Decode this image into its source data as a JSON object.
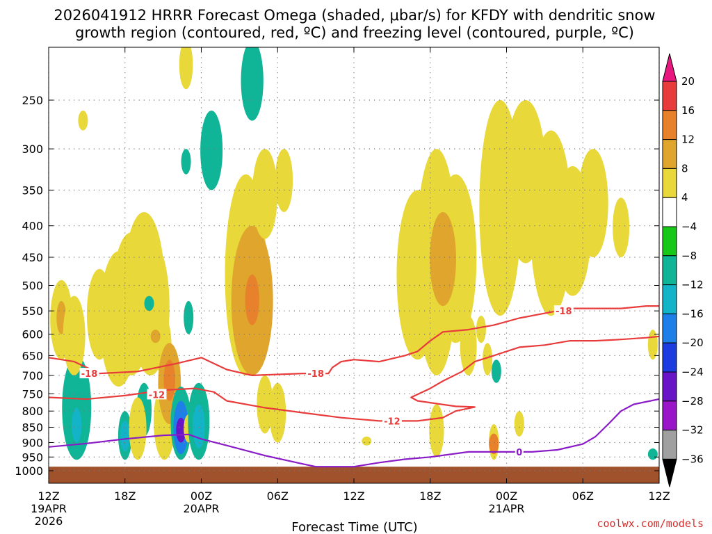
{
  "chart_data": {
    "type": "heatmap",
    "title_lines": [
      "2026041912 HRRR Forecast Omega (shaded, μbar/s) for KFDY with dendritic snow",
      "growth region (contoured, red, ºC) and freezing level (contoured, purple, ºC)"
    ],
    "xlabel": "Forecast Time (UTC)",
    "x_range_hours": [
      0,
      48
    ],
    "x_ticks": [
      {
        "hour": 0,
        "label": "12Z",
        "date": "19APR",
        "year": "2026"
      },
      {
        "hour": 6,
        "label": "18Z"
      },
      {
        "hour": 12,
        "label": "00Z",
        "date": "20APR"
      },
      {
        "hour": 18,
        "label": "06Z"
      },
      {
        "hour": 24,
        "label": "12Z"
      },
      {
        "hour": 30,
        "label": "18Z"
      },
      {
        "hour": 36,
        "label": "00Z",
        "date": "21APR"
      },
      {
        "hour": 42,
        "label": "06Z"
      },
      {
        "hour": 48,
        "label": "12Z"
      }
    ],
    "y_ticks_hpa": [
      250,
      300,
      350,
      400,
      450,
      500,
      550,
      600,
      650,
      700,
      750,
      800,
      850,
      900,
      950,
      1000
    ],
    "y_range_hpa": [
      200,
      1015
    ],
    "colorbar": {
      "levels": [
        "20",
        "16",
        "12",
        "8",
        "4",
        "−4",
        "−8",
        "−12",
        "−16",
        "−20",
        "−24",
        "−28",
        "−32",
        "−36"
      ],
      "colors": [
        "#e8177f",
        "#e83b3b",
        "#e8812b",
        "#e0a52c",
        "#e8d83a",
        "#ffffff",
        "#18c818",
        "#10b496",
        "#14b4c8",
        "#1f7fe8",
        "#1c3ce0",
        "#6a14c8",
        "#9a14c8",
        "#a0a0a0",
        "#000000"
      ]
    },
    "ground_color": "#a0522d",
    "ground_top_hpa": 985,
    "omega_blobs": [
      {
        "hour": 1.0,
        "p_top": 490,
        "p_bot": 660,
        "value": 4
      },
      {
        "hour": 1.0,
        "p_top": 530,
        "p_bot": 600,
        "value": 8
      },
      {
        "hour": 2.2,
        "p_top": 650,
        "p_bot": 960,
        "value": -8
      },
      {
        "hour": 2.2,
        "p_top": 790,
        "p_bot": 900,
        "value": -12
      },
      {
        "hour": 2.0,
        "p_top": 520,
        "p_bot": 700,
        "value": 4
      },
      {
        "hour": 4.0,
        "p_top": 470,
        "p_bot": 660,
        "value": 4
      },
      {
        "hour": 5.5,
        "p_top": 440,
        "p_bot": 730,
        "value": 4
      },
      {
        "hour": 6.5,
        "p_top": 410,
        "p_bot": 700,
        "value": 4
      },
      {
        "hour": 7.5,
        "p_top": 380,
        "p_bot": 680,
        "value": 4
      },
      {
        "hour": 8.0,
        "p_top": 420,
        "p_bot": 700,
        "value": 4
      },
      {
        "hour": 9.0,
        "p_top": 560,
        "p_bot": 700,
        "value": 4
      },
      {
        "hour": 6.0,
        "p_top": 800,
        "p_bot": 960,
        "value": -8
      },
      {
        "hour": 6.0,
        "p_top": 830,
        "p_bot": 930,
        "value": -12
      },
      {
        "hour": 7.5,
        "p_top": 720,
        "p_bot": 880,
        "value": -8
      },
      {
        "hour": 7.0,
        "p_top": 760,
        "p_bot": 960,
        "value": 4
      },
      {
        "hour": 7.9,
        "p_top": 520,
        "p_bot": 550,
        "value": -8
      },
      {
        "hour": 8.3,
        "p_top": 550,
        "p_bot": 660,
        "value": 4
      },
      {
        "hour": 8.4,
        "p_top": 590,
        "p_bot": 620,
        "value": 8
      },
      {
        "hour": 9.1,
        "p_top": 720,
        "p_bot": 960,
        "value": 4
      },
      {
        "hour": 9.5,
        "p_top": 620,
        "p_bot": 840,
        "value": 8
      },
      {
        "hour": 9.5,
        "p_top": 660,
        "p_bot": 770,
        "value": 12
      },
      {
        "hour": 10.4,
        "p_top": 730,
        "p_bot": 960,
        "value": -8
      },
      {
        "hour": 10.4,
        "p_top": 770,
        "p_bot": 940,
        "value": -16
      },
      {
        "hour": 10.4,
        "p_top": 820,
        "p_bot": 900,
        "value": -24
      },
      {
        "hour": 11.0,
        "p_top": 810,
        "p_bot": 900,
        "value": 4
      },
      {
        "hour": 11.8,
        "p_top": 720,
        "p_bot": 960,
        "value": -8
      },
      {
        "hour": 11.8,
        "p_top": 780,
        "p_bot": 920,
        "value": -12
      },
      {
        "hour": 11.0,
        "p_top": 530,
        "p_bot": 600,
        "value": -8
      },
      {
        "hour": 10.8,
        "p_top": 300,
        "p_bot": 330,
        "value": -8
      },
      {
        "hour": 12.8,
        "p_top": 260,
        "p_bot": 350,
        "value": -8
      },
      {
        "hour": 10.8,
        "p_top": 200,
        "p_bot": 240,
        "value": 4
      },
      {
        "hour": 16.0,
        "p_top": 200,
        "p_bot": 270,
        "value": -8
      },
      {
        "hour": 15.5,
        "p_top": 330,
        "p_bot": 700,
        "value": 4
      },
      {
        "hour": 16.0,
        "p_top": 400,
        "p_bot": 700,
        "value": 8
      },
      {
        "hour": 16.0,
        "p_top": 480,
        "p_bot": 580,
        "value": 12
      },
      {
        "hour": 17.0,
        "p_top": 300,
        "p_bot": 420,
        "value": 4
      },
      {
        "hour": 18.5,
        "p_top": 300,
        "p_bot": 380,
        "value": 4
      },
      {
        "hour": 17.0,
        "p_top": 700,
        "p_bot": 870,
        "value": 4
      },
      {
        "hour": 18.0,
        "p_top": 720,
        "p_bot": 900,
        "value": 4
      },
      {
        "hour": 2.7,
        "p_top": 260,
        "p_bot": 280,
        "value": 4
      },
      {
        "hour": 25.0,
        "p_top": 880,
        "p_bot": 910,
        "value": 4
      },
      {
        "hour": 30.5,
        "p_top": 300,
        "p_bot": 700,
        "value": 4
      },
      {
        "hour": 29.0,
        "p_top": 350,
        "p_bot": 660,
        "value": 4
      },
      {
        "hour": 32.0,
        "p_top": 330,
        "p_bot": 620,
        "value": 4
      },
      {
        "hour": 31.0,
        "p_top": 380,
        "p_bot": 540,
        "value": 8
      },
      {
        "hour": 33.0,
        "p_top": 560,
        "p_bot": 700,
        "value": 4
      },
      {
        "hour": 34.5,
        "p_top": 620,
        "p_bot": 700,
        "value": 4
      },
      {
        "hour": 34.0,
        "p_top": 560,
        "p_bot": 620,
        "value": 4
      },
      {
        "hour": 30.5,
        "p_top": 780,
        "p_bot": 950,
        "value": 4
      },
      {
        "hour": 35.5,
        "p_top": 250,
        "p_bot": 560,
        "value": 4
      },
      {
        "hour": 37.5,
        "p_top": 250,
        "p_bot": 460,
        "value": 4
      },
      {
        "hour": 39.5,
        "p_top": 280,
        "p_bot": 560,
        "value": 4
      },
      {
        "hour": 41.2,
        "p_top": 320,
        "p_bot": 520,
        "value": 4
      },
      {
        "hour": 42.8,
        "p_top": 300,
        "p_bot": 450,
        "value": 4
      },
      {
        "hour": 45.0,
        "p_top": 360,
        "p_bot": 450,
        "value": 4
      },
      {
        "hour": 35.2,
        "p_top": 660,
        "p_bot": 720,
        "value": -8
      },
      {
        "hour": 35.0,
        "p_top": 840,
        "p_bot": 960,
        "value": 4
      },
      {
        "hour": 35.0,
        "p_top": 870,
        "p_bot": 940,
        "value": 12
      },
      {
        "hour": 37.0,
        "p_top": 800,
        "p_bot": 880,
        "value": 4
      },
      {
        "hour": 47.5,
        "p_top": 590,
        "p_bot": 660,
        "value": 4
      },
      {
        "hour": 47.5,
        "p_top": 920,
        "p_bot": 960,
        "value": -8
      }
    ],
    "contours": [
      {
        "name": "dgz-minus-18",
        "color": "#e83b3b",
        "value": -18,
        "points": [
          [
            0,
            655
          ],
          [
            2,
            665
          ],
          [
            4,
            695
          ],
          [
            7,
            690
          ],
          [
            10,
            670
          ],
          [
            12,
            655
          ],
          [
            14,
            685
          ],
          [
            16,
            700
          ],
          [
            20,
            695
          ],
          [
            22,
            695
          ],
          [
            22.3,
            680
          ],
          [
            23,
            665
          ],
          [
            24,
            660
          ],
          [
            26,
            665
          ],
          [
            28,
            650
          ],
          [
            29,
            640
          ],
          [
            30,
            615
          ],
          [
            31,
            595
          ],
          [
            33,
            590
          ],
          [
            35,
            580
          ],
          [
            37,
            565
          ],
          [
            39,
            555
          ],
          [
            41,
            545
          ],
          [
            43,
            545
          ],
          [
            45,
            545
          ],
          [
            47,
            540
          ],
          [
            48,
            540
          ]
        ],
        "labels": [
          {
            "hour": 3.2,
            "p": 695,
            "text": "-18"
          },
          {
            "hour": 21.0,
            "p": 695,
            "text": "-18"
          },
          {
            "hour": 40.5,
            "p": 550,
            "text": "-18"
          }
        ]
      },
      {
        "name": "dgz-minus-12",
        "color": "#e83b3b",
        "value": -12,
        "points": [
          [
            0,
            760
          ],
          [
            3,
            765
          ],
          [
            6,
            755
          ],
          [
            9,
            740
          ],
          [
            11.5,
            735
          ],
          [
            13,
            745
          ],
          [
            14,
            770
          ],
          [
            17,
            790
          ],
          [
            20,
            805
          ],
          [
            23,
            820
          ],
          [
            26,
            830
          ],
          [
            29,
            830
          ],
          [
            31,
            820
          ],
          [
            32,
            800
          ],
          [
            33.5,
            788
          ],
          [
            32,
            786
          ],
          [
            29,
            770
          ],
          [
            28.5,
            760
          ],
          [
            30,
            735
          ],
          [
            31,
            715
          ],
          [
            32.5,
            690
          ],
          [
            33.5,
            665
          ],
          [
            35,
            650
          ],
          [
            37,
            630
          ],
          [
            39,
            625
          ],
          [
            41,
            615
          ],
          [
            43,
            615
          ],
          [
            45,
            612
          ],
          [
            47,
            608
          ],
          [
            48,
            605
          ]
        ],
        "labels": [
          {
            "hour": 8.5,
            "p": 752,
            "text": "-12"
          },
          {
            "hour": 27.0,
            "p": 830,
            "text": "-12"
          }
        ]
      },
      {
        "name": "freezing-level",
        "color": "#8a1cc8",
        "value": 0,
        "points": [
          [
            0,
            915
          ],
          [
            3,
            903
          ],
          [
            6,
            888
          ],
          [
            9,
            876
          ],
          [
            11,
            873
          ],
          [
            12,
            888
          ],
          [
            14,
            910
          ],
          [
            17,
            945
          ],
          [
            20,
            975
          ],
          [
            21,
            985
          ],
          [
            24,
            985
          ],
          [
            26,
            970
          ],
          [
            28,
            958
          ],
          [
            30,
            950
          ],
          [
            33,
            932
          ],
          [
            36,
            932
          ],
          [
            38,
            932
          ],
          [
            40,
            925
          ],
          [
            42,
            905
          ],
          [
            43,
            880
          ],
          [
            44,
            840
          ],
          [
            45,
            800
          ],
          [
            46,
            780
          ],
          [
            48,
            765
          ]
        ],
        "labels": [
          {
            "hour": 37.0,
            "p": 932,
            "text": "0"
          }
        ]
      }
    ]
  },
  "credit": "coolwx.com/models"
}
